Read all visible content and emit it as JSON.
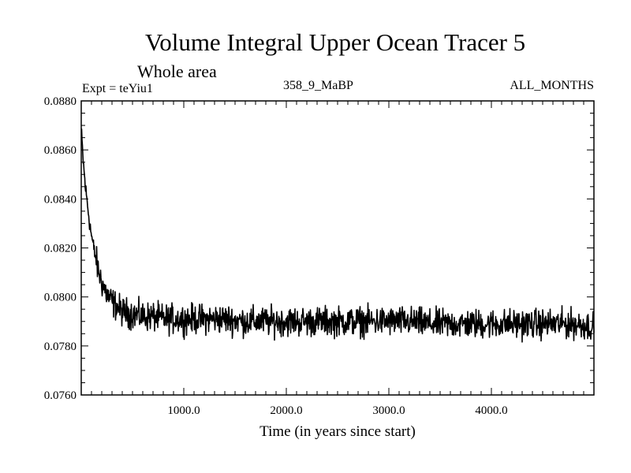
{
  "chart_data": {
    "type": "line",
    "title": "Volume Integral Upper Ocean Tracer 5",
    "subtitle": "Whole area",
    "annotations": {
      "left": "Expt = teYiu1",
      "center": "358_9_MaBP",
      "right": "ALL_MONTHS"
    },
    "xlabel": "Time (in years since start)",
    "ylabel": "",
    "xlim": [
      0,
      5000
    ],
    "ylim": [
      0.076,
      0.088
    ],
    "x_ticks": [
      1000,
      2000,
      3000,
      4000
    ],
    "x_tick_labels": [
      "1000.0",
      "2000.0",
      "3000.0",
      "4000.0"
    ],
    "y_ticks": [
      0.076,
      0.078,
      0.08,
      0.082,
      0.084,
      0.086,
      0.088
    ],
    "y_tick_labels": [
      "0.0760",
      "0.0780",
      "0.0800",
      "0.0820",
      "0.0840",
      "0.0860",
      "0.0880"
    ],
    "grid": false,
    "series": [
      {
        "name": "Volume Integral Upper Ocean Tracer 5",
        "color": "#000000",
        "x": [
          0,
          20,
          40,
          60,
          80,
          100,
          130,
          160,
          200,
          250,
          300,
          350,
          400,
          500,
          600,
          700,
          800,
          1000,
          1200,
          1400,
          1600,
          1800,
          2000,
          2200,
          2400,
          2600,
          2800,
          3000,
          3200,
          3400,
          3600,
          3800,
          4000,
          4200,
          4400,
          4600,
          4800,
          5000
        ],
        "y": [
          0.0868,
          0.0855,
          0.0845,
          0.0838,
          0.0831,
          0.0825,
          0.0818,
          0.0812,
          0.0806,
          0.0801,
          0.0798,
          0.0796,
          0.0794,
          0.0793,
          0.0792,
          0.0792,
          0.0791,
          0.0791,
          0.0791,
          0.0791,
          0.079,
          0.079,
          0.079,
          0.079,
          0.079,
          0.079,
          0.079,
          0.079,
          0.079,
          0.0789,
          0.0789,
          0.0789,
          0.0789,
          0.0789,
          0.0789,
          0.0789,
          0.0789,
          0.0788
        ],
        "noise_amplitude": 0.00045
      }
    ]
  }
}
